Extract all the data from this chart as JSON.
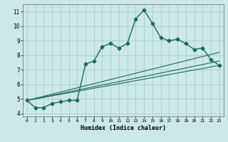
{
  "xlabel": "Humidex (Indice chaleur)",
  "ylabel": "",
  "background_color": "#cce8e8",
  "grid_color": "#aacccc",
  "line_color": "#1a6b5a",
  "xlim": [
    -0.5,
    23.5
  ],
  "ylim": [
    3.8,
    11.5
  ],
  "xticks": [
    0,
    1,
    2,
    3,
    4,
    5,
    6,
    7,
    8,
    9,
    10,
    11,
    12,
    13,
    14,
    15,
    16,
    17,
    18,
    19,
    20,
    21,
    22,
    23
  ],
  "yticks": [
    4,
    5,
    6,
    7,
    8,
    9,
    10,
    11
  ],
  "lines": [
    {
      "x": [
        0,
        1,
        2,
        3,
        4,
        5,
        6,
        7,
        8,
        9,
        10,
        11,
        12,
        13,
        14,
        15,
        16,
        17,
        18,
        19,
        20,
        21,
        22,
        23
      ],
      "y": [
        4.9,
        4.4,
        4.4,
        4.7,
        4.8,
        4.9,
        4.9,
        7.4,
        7.6,
        8.6,
        8.8,
        8.5,
        8.8,
        10.5,
        11.1,
        10.2,
        9.2,
        9.0,
        9.1,
        8.8,
        8.4,
        8.5,
        7.7,
        7.3
      ],
      "marker": "D",
      "markersize": 2.5,
      "linewidth": 1.0,
      "has_marker": true
    },
    {
      "x": [
        0,
        23
      ],
      "y": [
        4.9,
        7.3
      ],
      "has_marker": false,
      "linewidth": 0.8
    },
    {
      "x": [
        0,
        23
      ],
      "y": [
        4.9,
        7.6
      ],
      "has_marker": false,
      "linewidth": 0.8
    },
    {
      "x": [
        0,
        23
      ],
      "y": [
        4.9,
        8.2
      ],
      "has_marker": false,
      "linewidth": 0.8
    }
  ]
}
